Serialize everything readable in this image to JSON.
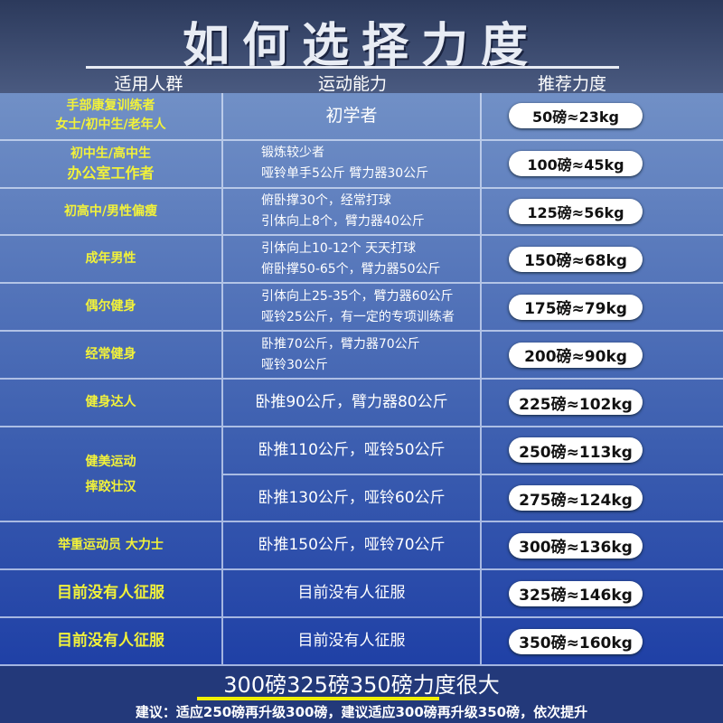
{
  "title": "如何选择力度",
  "headers": [
    "适用人群",
    "运动能力",
    "推荐力度"
  ],
  "rows": [
    {
      "group": [
        "手部康复训练者",
        "女士/初中生/老年人"
      ],
      "ability": [
        "初学者"
      ],
      "force": "50磅≈23kg"
    },
    {
      "group": [
        "初中生/高中生",
        "办公室工作者"
      ],
      "ability": [
        "锻炼较少者",
        "哑铃单手5公斤  臂力器30公斤"
      ],
      "force": "100磅≈45kg"
    },
    {
      "group": [
        "初高中/男性偏瘦"
      ],
      "ability": [
        "俯卧撑30个，经常打球",
        "引体向上8个，臂力器40公斤"
      ],
      "force": "125磅≈56kg"
    },
    {
      "group": [
        "成年男性"
      ],
      "ability": [
        "引体向上10-12个 天天打球",
        "俯卧撑50-65个，臂力器50公斤"
      ],
      "force": "150磅≈68kg"
    },
    {
      "group": [
        "偶尔健身"
      ],
      "ability": [
        "引体向上25-35个，臂力器60公斤",
        "哑铃25公斤，有一定的专项训练者"
      ],
      "force": "175磅≈79kg"
    },
    {
      "group": [
        "经常健身"
      ],
      "ability": [
        "卧推70公斤，臂力器70公斤",
        "哑铃30公斤"
      ],
      "force": "200磅≈90kg"
    },
    {
      "group": [
        "健身达人"
      ],
      "ability": [
        "卧推90公斤，臂力器80公斤"
      ],
      "force": "225磅≈102kg"
    },
    {
      "group": [
        "健美运动",
        "摔跤壮汉"
      ],
      "ability": [
        "卧推110公斤，哑铃50公斤"
      ],
      "force": "250磅≈113kg"
    },
    {
      "group": [],
      "ability": [
        "卧推130公斤，哑铃60公斤"
      ],
      "force": "275磅≈124kg"
    },
    {
      "group": [
        "举重运动员 大力士"
      ],
      "ability": [
        "卧推150公斤，哑铃70公斤"
      ],
      "force": "300磅≈136kg"
    },
    {
      "group": [
        "目前没有人征服"
      ],
      "ability": [
        "目前没有人征服"
      ],
      "force": "325磅≈146kg"
    },
    {
      "group": [
        "目前没有人征服"
      ],
      "ability": [
        "目前没有人征服"
      ],
      "force": "350磅≈160kg"
    }
  ],
  "footer": {
    "headline": "300磅325磅350磅力度很大",
    "advice": "建议：适应250磅再升级300磅，建议适应300磅再升级350磅，依次提升"
  }
}
